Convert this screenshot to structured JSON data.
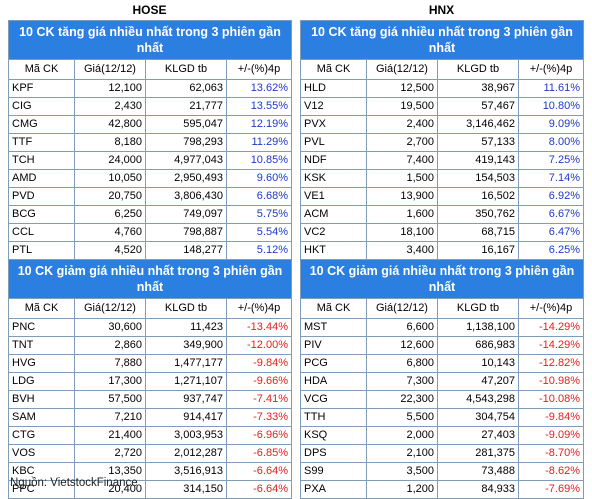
{
  "hose": {
    "title": "HOSE",
    "gainers_title": "10 CK tăng giá nhiều nhất trong 3 phiên gần nhất",
    "losers_title": "10 CK giảm giá nhiều nhất trong 3 phiên gần nhất",
    "headers": [
      "Mã CK",
      "Giá(12/12)",
      "KLGD tb",
      "+/-(%)4p"
    ],
    "gainers": [
      {
        "symbol": "KPF",
        "price": "12,100",
        "volume": "62,063",
        "change": "13.62%"
      },
      {
        "symbol": "CIG",
        "price": "2,430",
        "volume": "21,777",
        "change": "13.55%"
      },
      {
        "symbol": "CMG",
        "price": "42,800",
        "volume": "595,047",
        "change": "12.19%"
      },
      {
        "symbol": "TTF",
        "price": "8,180",
        "volume": "798,293",
        "change": "11.29%"
      },
      {
        "symbol": "TCH",
        "price": "24,000",
        "volume": "4,977,043",
        "change": "10.85%"
      },
      {
        "symbol": "AMD",
        "price": "10,050",
        "volume": "2,950,493",
        "change": "9.60%"
      },
      {
        "symbol": "PVD",
        "price": "20,750",
        "volume": "3,806,430",
        "change": "6.68%"
      },
      {
        "symbol": "BCG",
        "price": "6,250",
        "volume": "749,097",
        "change": "5.75%"
      },
      {
        "symbol": "CCL",
        "price": "4,760",
        "volume": "798,887",
        "change": "5.54%"
      },
      {
        "symbol": "PTL",
        "price": "4,520",
        "volume": "148,277",
        "change": "5.12%"
      }
    ],
    "losers": [
      {
        "symbol": "PNC",
        "price": "30,600",
        "volume": "11,423",
        "change": "-13.44%"
      },
      {
        "symbol": "TNT",
        "price": "2,860",
        "volume": "349,900",
        "change": "-12.00%"
      },
      {
        "symbol": "HVG",
        "price": "7,880",
        "volume": "1,477,177",
        "change": "-9.84%"
      },
      {
        "symbol": "LDG",
        "price": "17,300",
        "volume": "1,271,107",
        "change": "-9.66%"
      },
      {
        "symbol": "BVH",
        "price": "57,500",
        "volume": "937,747",
        "change": "-7.41%"
      },
      {
        "symbol": "SAM",
        "price": "7,210",
        "volume": "914,417",
        "change": "-7.33%"
      },
      {
        "symbol": "CTG",
        "price": "21,400",
        "volume": "3,003,953",
        "change": "-6.96%"
      },
      {
        "symbol": "VOS",
        "price": "2,720",
        "volume": "2,012,287",
        "change": "-6.85%"
      },
      {
        "symbol": "KBC",
        "price": "13,350",
        "volume": "3,516,913",
        "change": "-6.64%"
      },
      {
        "symbol": "PPC",
        "price": "20,400",
        "volume": "314,150",
        "change": "-6.64%"
      }
    ]
  },
  "hnx": {
    "title": "HNX",
    "gainers_title": "10 CK tăng giá nhiều nhất trong 3 phiên gần nhất",
    "losers_title": "10 CK giảm giá nhiều nhất trong 3 phiên gần nhất",
    "headers": [
      "Mã CK",
      "Giá(12/12)",
      "KLGD tb",
      "+/-(%)4p"
    ],
    "gainers": [
      {
        "symbol": "HLD",
        "price": "12,500",
        "volume": "38,967",
        "change": "11.61%"
      },
      {
        "symbol": "V12",
        "price": "19,500",
        "volume": "57,467",
        "change": "10.80%"
      },
      {
        "symbol": "PVX",
        "price": "2,400",
        "volume": "3,146,462",
        "change": "9.09%"
      },
      {
        "symbol": "PVL",
        "price": "2,700",
        "volume": "57,133",
        "change": "8.00%"
      },
      {
        "symbol": "NDF",
        "price": "7,400",
        "volume": "419,143",
        "change": "7.25%"
      },
      {
        "symbol": "KSK",
        "price": "1,500",
        "volume": "154,503",
        "change": "7.14%"
      },
      {
        "symbol": "VE1",
        "price": "13,900",
        "volume": "16,502",
        "change": "6.92%"
      },
      {
        "symbol": "ACM",
        "price": "1,600",
        "volume": "350,762",
        "change": "6.67%"
      },
      {
        "symbol": "VC2",
        "price": "18,100",
        "volume": "68,715",
        "change": "6.47%"
      },
      {
        "symbol": "HKT",
        "price": "3,400",
        "volume": "16,167",
        "change": "6.25%"
      }
    ],
    "losers": [
      {
        "symbol": "MST",
        "price": "6,600",
        "volume": "1,138,100",
        "change": "-14.29%"
      },
      {
        "symbol": "PIV",
        "price": "12,600",
        "volume": "686,983",
        "change": "-14.29%"
      },
      {
        "symbol": "PCG",
        "price": "6,800",
        "volume": "10,143",
        "change": "-12.82%"
      },
      {
        "symbol": "HDA",
        "price": "7,300",
        "volume": "47,207",
        "change": "-10.98%"
      },
      {
        "symbol": "VCG",
        "price": "22,300",
        "volume": "4,543,298",
        "change": "-10.08%"
      },
      {
        "symbol": "TTH",
        "price": "5,500",
        "volume": "304,754",
        "change": "-9.84%"
      },
      {
        "symbol": "KSQ",
        "price": "2,000",
        "volume": "27,403",
        "change": "-9.09%"
      },
      {
        "symbol": "DPS",
        "price": "2,100",
        "volume": "281,375",
        "change": "-8.70%"
      },
      {
        "symbol": "S99",
        "price": "3,500",
        "volume": "73,488",
        "change": "-8.62%"
      },
      {
        "symbol": "PXA",
        "price": "1,200",
        "volume": "84,933",
        "change": "-7.69%"
      }
    ]
  },
  "source": "Nguồn: VietstockFinance",
  "colors": {
    "section_header_bg": "#2a7fe0",
    "positive": "#1f39c7",
    "negative": "#e02020",
    "border": "#7f9db9"
  }
}
